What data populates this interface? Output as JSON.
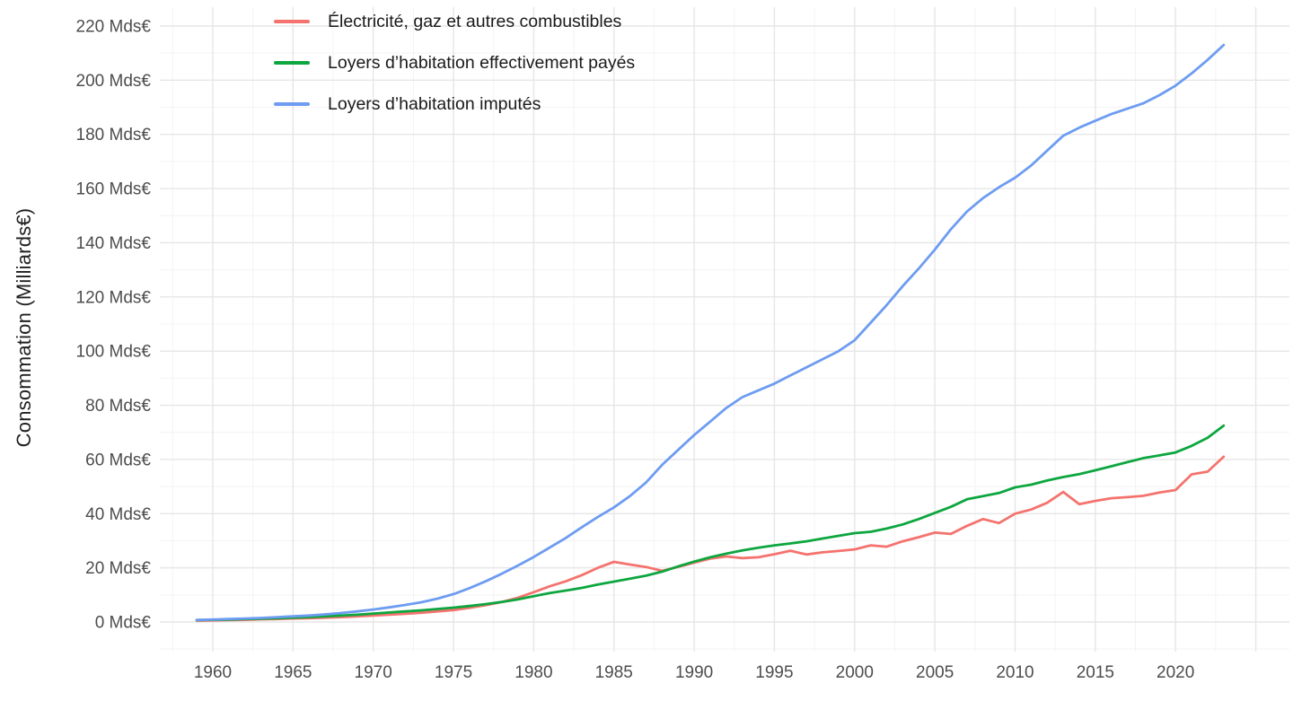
{
  "chart_data": {
    "type": "line",
    "title": "",
    "xlabel": "",
    "ylabel": "Consommation (Milliards€)",
    "y_tick_suffix": " Mds€",
    "x_ticks": [
      1960,
      1965,
      1970,
      1975,
      1980,
      1985,
      1990,
      1995,
      2000,
      2005,
      2010,
      2015,
      2020
    ],
    "y_ticks": [
      0,
      20,
      40,
      60,
      80,
      100,
      120,
      140,
      160,
      180,
      200,
      220
    ],
    "xlim": [
      1959,
      2023
    ],
    "ylim": [
      0,
      220
    ],
    "grid": "major and minor gridlines, light gray on white",
    "legend_position": "inside top-left",
    "colors": {
      "grid_major": "#e6e6e6",
      "grid_minor": "#f3f3f3",
      "tick_text": "#4d4d4d",
      "background": "#ffffff"
    },
    "x": [
      1959,
      1960,
      1961,
      1962,
      1963,
      1964,
      1965,
      1966,
      1967,
      1968,
      1969,
      1970,
      1971,
      1972,
      1973,
      1974,
      1975,
      1976,
      1977,
      1978,
      1979,
      1980,
      1981,
      1982,
      1983,
      1984,
      1985,
      1986,
      1987,
      1988,
      1989,
      1990,
      1991,
      1992,
      1993,
      1994,
      1995,
      1996,
      1997,
      1998,
      1999,
      2000,
      2001,
      2002,
      2003,
      2004,
      2005,
      2006,
      2007,
      2008,
      2009,
      2010,
      2011,
      2012,
      2013,
      2014,
      2015,
      2016,
      2017,
      2018,
      2019,
      2020,
      2021,
      2022,
      2023
    ],
    "series": [
      {
        "name": "Électricité, gaz et autres combustibles",
        "slug": "electricite-gaz-et-autres-combustibles",
        "color": "#F4736E",
        "values": [
          0.5,
          0.6,
          0.7,
          0.8,
          1.0,
          1.1,
          1.3,
          1.4,
          1.6,
          1.8,
          2.1,
          2.4,
          2.7,
          3.0,
          3.4,
          3.9,
          4.4,
          5.2,
          6.2,
          7.4,
          8.9,
          11.0,
          13.2,
          15.0,
          17.3,
          20.0,
          22.2,
          21.2,
          20.3,
          18.9,
          20.3,
          21.9,
          23.4,
          24.2,
          23.6,
          23.9,
          25.0,
          26.3,
          24.9,
          25.7,
          26.2,
          26.8,
          28.3,
          27.8,
          29.8,
          31.3,
          33.0,
          32.5,
          35.5,
          38.0,
          36.5,
          40.0,
          41.5,
          44.0,
          48.0,
          43.5,
          44.7,
          45.7,
          46.1,
          46.6,
          47.8,
          48.7,
          54.5,
          55.5,
          61.0
        ]
      },
      {
        "name": "Loyers d’habitation effectivement payés",
        "slug": "loyers-habitation-effectivement-payes",
        "color": "#0DA63F",
        "values": [
          0.7,
          0.8,
          0.9,
          1.1,
          1.2,
          1.4,
          1.6,
          1.8,
          2.1,
          2.4,
          2.7,
          3.1,
          3.5,
          3.9,
          4.3,
          4.8,
          5.3,
          5.9,
          6.6,
          7.4,
          8.3,
          9.5,
          10.7,
          11.6,
          12.6,
          13.8,
          14.9,
          16.0,
          17.1,
          18.6,
          20.5,
          22.3,
          23.9,
          25.2,
          26.4,
          27.4,
          28.3,
          29.0,
          29.8,
          30.8,
          31.8,
          32.8,
          33.3,
          34.5,
          36.0,
          38.0,
          40.3,
          42.5,
          45.3,
          46.5,
          47.6,
          49.7,
          50.7,
          52.2,
          53.5,
          54.6,
          56.0,
          57.5,
          59.0,
          60.5,
          61.5,
          62.6,
          65.0,
          68.0,
          72.5
        ]
      },
      {
        "name": "Loyers d’habitation imputés",
        "slug": "loyers-habitation-imputes",
        "color": "#6D9CF1",
        "values": [
          0.8,
          0.9,
          1.1,
          1.3,
          1.5,
          1.8,
          2.1,
          2.4,
          2.8,
          3.3,
          3.9,
          4.6,
          5.4,
          6.3,
          7.3,
          8.6,
          10.3,
          12.5,
          15.0,
          17.8,
          20.8,
          24.0,
          27.5,
          31.0,
          35.0,
          38.8,
          42.3,
          46.5,
          51.5,
          58.0,
          63.5,
          69.0,
          74.0,
          79.0,
          83.0,
          85.5,
          88.0,
          91.0,
          94.0,
          97.0,
          100.0,
          104.0,
          110.5,
          117.0,
          124.0,
          130.5,
          137.5,
          145.0,
          151.5,
          156.5,
          160.5,
          164.0,
          168.5,
          174.0,
          179.5,
          182.5,
          185.0,
          187.5,
          189.5,
          191.5,
          194.5,
          198.0,
          202.5,
          207.5,
          213.0
        ]
      }
    ]
  }
}
